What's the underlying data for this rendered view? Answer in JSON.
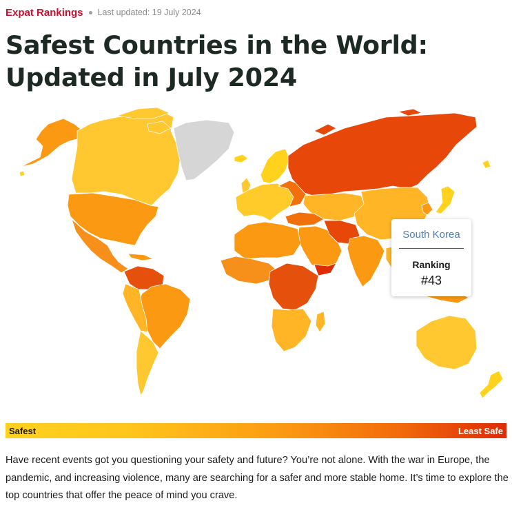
{
  "header": {
    "brand": "Expat Rankings",
    "updated": "Last updated: 19 July 2024"
  },
  "title": "Safest Countries in the World: Updated in July 2024",
  "map": {
    "tooltip": {
      "country": "South Korea",
      "label": "Ranking",
      "value": "#43"
    },
    "colors": {
      "safest": "#ffd21e",
      "moderate": "#fb9a12",
      "unsafe": "#f26c0b",
      "least_safe": "#dd2c06",
      "no_data": "#d6d6d6"
    }
  },
  "legend": {
    "left_label": "Safest",
    "right_label": "Least Safe"
  },
  "intro_text": "Have recent events got you questioning your safety and future? You’re not alone. With the war in Europe, the pandemic, and increasing violence, many are searching for a safer and more stable home. It’s time to explore the top countries that offer the peace of mind you crave."
}
